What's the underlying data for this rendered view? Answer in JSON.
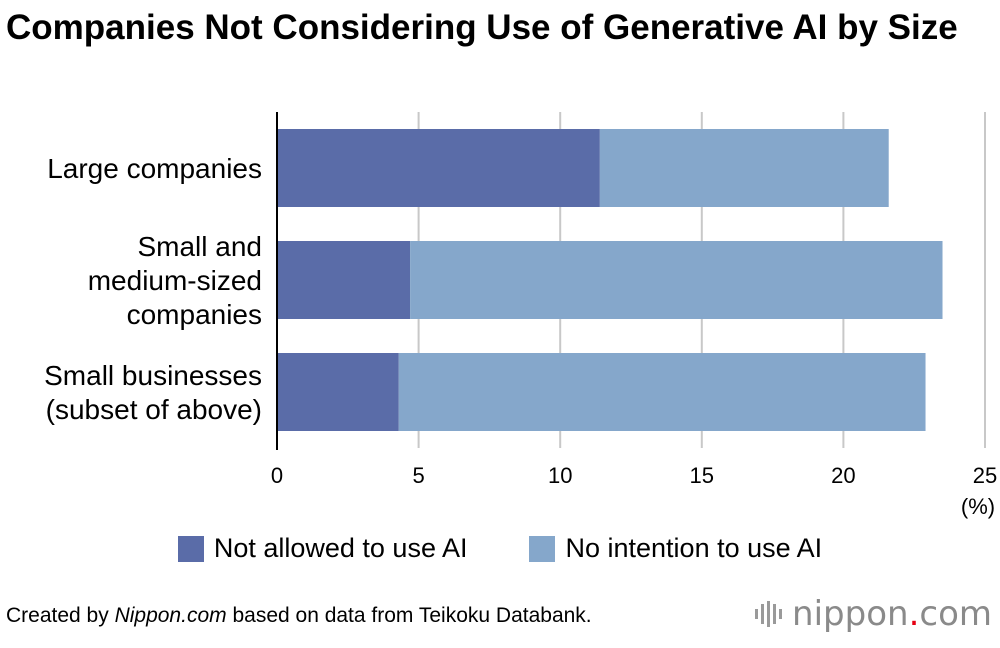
{
  "title": "Companies Not Considering Use of Generative AI by Size",
  "unit_label": "(%)",
  "colors": {
    "not_allowed": "#5a6ca8",
    "no_intention": "#85a7cb",
    "grid": "#c8c8c8",
    "axis": "#000000"
  },
  "chart_data": {
    "type": "bar",
    "orientation": "horizontal",
    "stacked": true,
    "title": "Companies Not Considering Use of Generative AI by Size",
    "categories": [
      [
        "Large companies"
      ],
      [
        "Small and",
        "medium-sized",
        "companies"
      ],
      [
        "Small businesses",
        "(subset of above)"
      ]
    ],
    "series": [
      {
        "name": "Not allowed to use AI",
        "values": [
          11.4,
          4.7,
          4.3
        ],
        "color": "#5a6ca8"
      },
      {
        "name": "No intention to use AI",
        "values": [
          10.2,
          18.8,
          18.6
        ],
        "color": "#85a7cb"
      }
    ],
    "xlim": [
      0,
      25
    ],
    "xticks": [
      "0",
      "5",
      "10",
      "15",
      "20",
      "25"
    ],
    "xlabel": "(%)",
    "grid": true,
    "legend_position": "bottom"
  },
  "legend": [
    {
      "label": "Not allowed to use AI"
    },
    {
      "label": "No intention to use AI"
    }
  ],
  "footer": {
    "prefix": "Created by ",
    "source_name": "Nippon.com",
    "suffix": " based on data from Teikoku Databank."
  },
  "logo": {
    "name": "nippon",
    "dot": ".",
    "tld": "com"
  }
}
